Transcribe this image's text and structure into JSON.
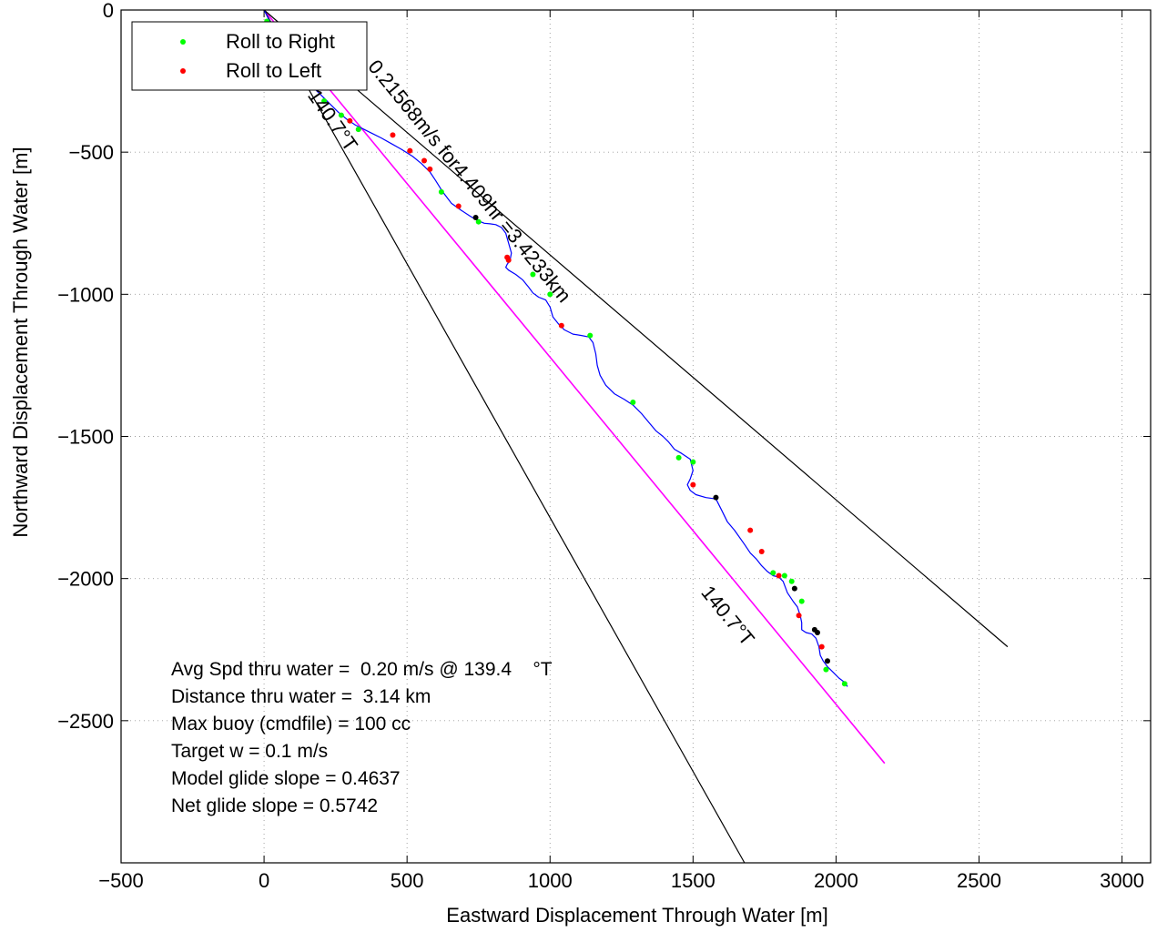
{
  "chart_data": {
    "type": "line",
    "xlabel": "Eastward Displacement Through Water [m]",
    "ylabel": "Northward Displacement Through Water [m]",
    "xlim": [
      -500,
      3100
    ],
    "ylim": [
      -3000,
      0
    ],
    "xticks": [
      -500,
      0,
      500,
      1000,
      1500,
      2000,
      2500,
      3000
    ],
    "yticks": [
      -2500,
      -2000,
      -1500,
      -1000,
      -500,
      0
    ],
    "xtick_labels": [
      "−500",
      "0",
      "500",
      "1000",
      "1500",
      "2000",
      "2500",
      "3000"
    ],
    "ytick_labels": [
      "−2500",
      "−2000",
      "−1500",
      "−1000",
      "−500",
      "0"
    ],
    "grid": true,
    "legend_position": "top-left",
    "legend": [
      {
        "label": "Roll to Right",
        "color": "#00ff00"
      },
      {
        "label": "Roll to Left",
        "color": "#ff0000"
      }
    ],
    "colors": {
      "track": "#0000ff",
      "roll_right": "#00ff00",
      "roll_left": "#ff0000",
      "surfacing": "#000000",
      "reference": "#ff00ff",
      "bounds": "#000000"
    },
    "track": {
      "x": [
        0,
        25,
        55,
        80,
        110,
        140,
        165,
        200,
        230,
        260,
        290,
        320,
        350,
        380,
        410,
        445,
        480,
        520,
        550,
        580,
        600,
        625,
        655,
        690,
        720,
        745,
        770,
        790,
        810,
        830,
        845,
        855,
        865,
        860,
        850,
        845,
        855,
        880,
        905,
        925,
        940,
        960,
        985,
        1000,
        1010,
        1030,
        1050,
        1080,
        1110,
        1135,
        1150,
        1160,
        1165,
        1175,
        1195,
        1225,
        1260,
        1290,
        1320,
        1345,
        1370,
        1395,
        1415,
        1435,
        1460,
        1490,
        1500,
        1490,
        1480,
        1490,
        1510,
        1545,
        1580,
        1600,
        1620,
        1645,
        1680,
        1700,
        1720,
        1740,
        1760,
        1780,
        1800,
        1815,
        1830,
        1850,
        1865,
        1875,
        1880,
        1880,
        1895,
        1915,
        1930,
        1940,
        1945,
        1955,
        1970,
        1990,
        2010,
        2030,
        2040
      ],
      "y": [
        0,
        -50,
        -95,
        -140,
        -185,
        -230,
        -265,
        -300,
        -330,
        -360,
        -385,
        -405,
        -420,
        -435,
        -450,
        -470,
        -490,
        -515,
        -540,
        -570,
        -600,
        -640,
        -680,
        -705,
        -725,
        -740,
        -750,
        -752,
        -755,
        -765,
        -785,
        -820,
        -855,
        -880,
        -895,
        -905,
        -915,
        -930,
        -950,
        -975,
        -995,
        -1010,
        -1020,
        -1045,
        -1080,
        -1105,
        -1125,
        -1140,
        -1145,
        -1150,
        -1170,
        -1210,
        -1250,
        -1285,
        -1320,
        -1350,
        -1370,
        -1390,
        -1420,
        -1450,
        -1480,
        -1500,
        -1520,
        -1545,
        -1560,
        -1580,
        -1620,
        -1650,
        -1670,
        -1690,
        -1705,
        -1715,
        -1720,
        -1760,
        -1800,
        -1830,
        -1880,
        -1910,
        -1930,
        -1955,
        -1975,
        -1990,
        -1995,
        -2010,
        -2050,
        -2080,
        -2100,
        -2130,
        -2155,
        -2180,
        -2190,
        -2195,
        -2210,
        -2240,
        -2270,
        -2290,
        -2310,
        -2330,
        -2350,
        -2365,
        -2380
      ]
    },
    "roll_right_points": {
      "x": [
        10,
        35,
        95,
        150,
        210,
        270,
        330,
        620,
        750,
        940,
        1000,
        1140,
        1290,
        1450,
        1500,
        1780,
        1820,
        1845,
        1880,
        1965,
        2030
      ],
      "y": [
        -40,
        -75,
        -160,
        -245,
        -320,
        -370,
        -420,
        -640,
        -745,
        -930,
        -1000,
        -1145,
        -1380,
        -1575,
        -1590,
        -1980,
        -1990,
        -2010,
        -2080,
        -2320,
        -2370
      ]
    },
    "roll_left_points": {
      "x": [
        75,
        300,
        450,
        510,
        560,
        580,
        680,
        850,
        855,
        1040,
        1500,
        1700,
        1740,
        1800,
        1870,
        1950
      ],
      "y": [
        -130,
        -390,
        -440,
        -495,
        -530,
        -560,
        -690,
        -870,
        -880,
        -1110,
        -1670,
        -1830,
        -1905,
        -1990,
        -2130,
        -2240
      ]
    },
    "surfacing_points": {
      "x": [
        740,
        1580,
        1855,
        1925,
        1935,
        1970
      ],
      "y": [
        -730,
        -1715,
        -2035,
        -2180,
        -2190,
        -2290
      ]
    },
    "lines": [
      {
        "name": "reference",
        "x": [
          0,
          2170
        ],
        "y": [
          0,
          -2650
        ]
      },
      {
        "name": "bound",
        "x": [
          0,
          1680
        ],
        "y": [
          0,
          -3000
        ]
      },
      {
        "name": "bound",
        "x": [
          0,
          2600
        ],
        "y": [
          0,
          -2240
        ]
      }
    ],
    "annotations": [
      {
        "text": "0.21568m/s for4.409hr =3.4233km",
        "x": 360,
        "y": -200,
        "angle": 50.6
      },
      {
        "text": "140.7°T",
        "x": 150,
        "y": -300,
        "angle": 55
      },
      {
        "text": "140.7°T",
        "x": 1525,
        "y": -2050,
        "angle": 50.6
      }
    ],
    "stats": [
      "Avg Spd thru water =  0.20 m/s @ 139.4    °T",
      "Distance thru water =  3.14 km",
      "Max buoy (cmdfile) = 100 cc",
      "Target w = 0.1 m/s",
      "Model glide slope = 0.4637",
      "Net glide slope = 0.5742"
    ]
  }
}
